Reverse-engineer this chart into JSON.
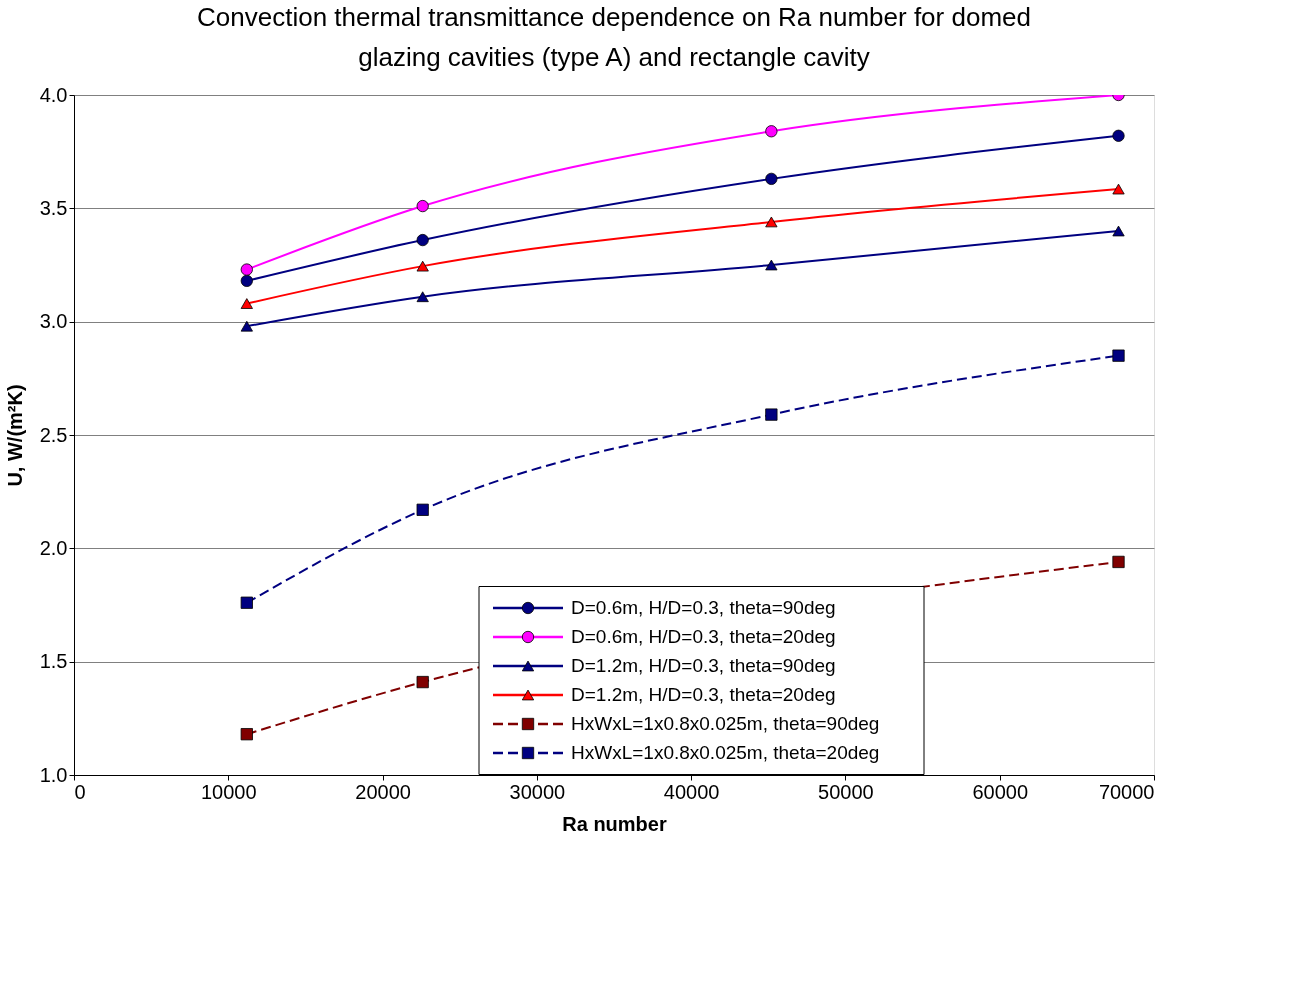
{
  "chart_data": {
    "type": "line",
    "title": "Convection thermal transmittance dependence on Ra number for domed glazing cavities (type A) and rectangle cavity",
    "xlabel": "Ra number",
    "ylabel": "U, W/(m²K)",
    "x": [
      11200,
      22600,
      45200,
      67700
    ],
    "series": [
      {
        "name": "D=0.6m, H/D=0.3, theta=90deg",
        "color": "#000080",
        "marker": "circle",
        "line_style": "solid",
        "values": [
          3.18,
          3.36,
          3.63,
          3.82
        ]
      },
      {
        "name": "D=0.6m, H/D=0.3, theta=20deg",
        "color": "#ff00ff",
        "marker": "circle",
        "line_style": "solid",
        "values": [
          3.23,
          3.51,
          3.84,
          4.0
        ]
      },
      {
        "name": "D=1.2m, H/D=0.3, theta=90deg",
        "color": "#000080",
        "marker": "triangle",
        "line_style": "solid",
        "values": [
          2.98,
          3.11,
          3.25,
          3.4
        ]
      },
      {
        "name": "D=1.2m, H/D=0.3, theta=20deg",
        "color": "#ff0000",
        "marker": "triangle",
        "line_style": "solid",
        "values": [
          3.08,
          3.245,
          3.44,
          3.585
        ]
      },
      {
        "name": "HxWxL=1x0.8x0.025m, theta=90deg",
        "color": "#800000",
        "marker": "square",
        "line_style": "dashed",
        "values": [
          1.18,
          1.41,
          null,
          1.94
        ]
      },
      {
        "name": "HxWxL=1x0.8x0.025m, theta=20deg",
        "color": "#000080",
        "marker": "square",
        "line_style": "dashed",
        "values": [
          1.76,
          2.17,
          2.59,
          2.85
        ]
      }
    ],
    "xlim": [
      0,
      70000
    ],
    "xticks": [
      0,
      10000,
      20000,
      30000,
      40000,
      50000,
      60000,
      70000
    ],
    "ylim": [
      1,
      4
    ],
    "yticks": [
      {
        "value": 1,
        "label": "1.0"
      },
      1.5,
      {
        "value": 2,
        "label": "2.0"
      },
      2.5,
      {
        "value": 3,
        "label": "3.0"
      },
      3.5,
      {
        "value": 4,
        "label": "4.0"
      }
    ],
    "grid": "y",
    "legend": "bottom right"
  }
}
